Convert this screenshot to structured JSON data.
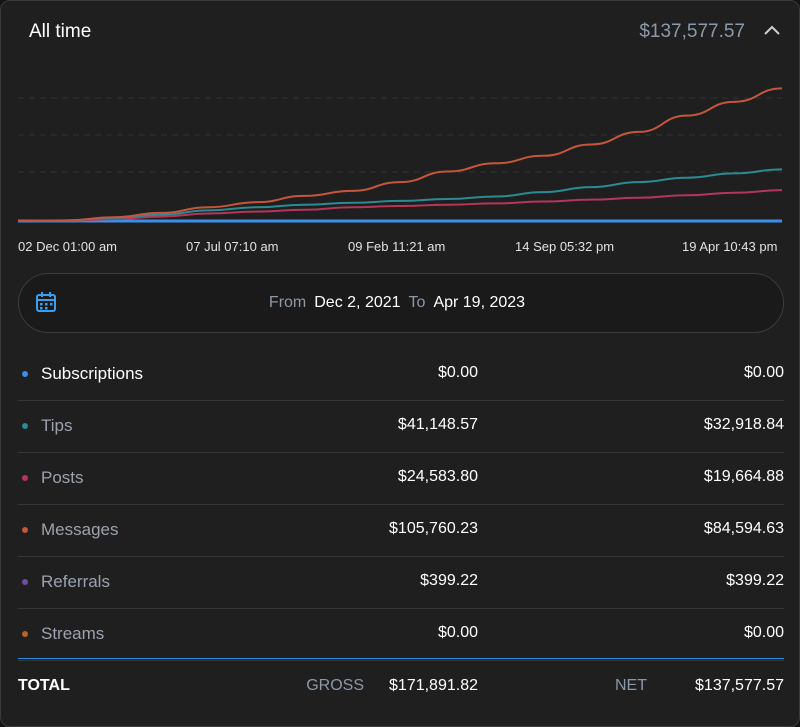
{
  "header": {
    "title": "All time",
    "total": "$137,577.57"
  },
  "chart_data": {
    "type": "line",
    "x_tick_labels": [
      "02 Dec 01:00 am",
      "07 Jul 07:10 am",
      "09 Feb 11:21 am",
      "14 Sep 05:32 pm",
      "19 Apr 10:43 pm"
    ],
    "ylim": [
      0,
      110000
    ],
    "grid": "dashed-horizontal",
    "series": [
      {
        "name": "Subscriptions",
        "color": "#3b8fe8",
        "values": [
          0,
          0,
          0,
          0,
          0,
          0,
          0,
          0,
          0,
          0,
          0,
          0,
          0,
          0,
          0,
          0,
          0
        ]
      },
      {
        "name": "Posts",
        "color": "#b5355b",
        "values": [
          0,
          300,
          1500,
          3500,
          6000,
          7500,
          9000,
          11000,
          12000,
          13000,
          14000,
          15500,
          17000,
          18500,
          20500,
          22500,
          24584
        ]
      },
      {
        "name": "Tips",
        "color": "#2c8a93",
        "values": [
          0,
          400,
          2500,
          5000,
          8500,
          11000,
          13000,
          14500,
          16000,
          17500,
          19500,
          23000,
          27000,
          31000,
          34500,
          38000,
          41149
        ]
      },
      {
        "name": "Messages",
        "color": "#c5563d",
        "values": [
          0,
          500,
          3000,
          6500,
          11000,
          15000,
          20000,
          24000,
          31000,
          39500,
          46000,
          52000,
          61000,
          71000,
          84000,
          95000,
          105760
        ]
      }
    ]
  },
  "date_range": {
    "from_label": "From",
    "from": "Dec 2, 2021",
    "to_label": "To",
    "to": "Apr 19, 2023"
  },
  "rows": [
    {
      "label": "Subscriptions",
      "color": "#3b8fe8",
      "gross": "$0.00",
      "net": "$0.00",
      "active": true
    },
    {
      "label": "Tips",
      "color": "#2c8a93",
      "gross": "$41,148.57",
      "net": "$32,918.84",
      "active": false
    },
    {
      "label": "Posts",
      "color": "#b5355b",
      "gross": "$24,583.80",
      "net": "$19,664.88",
      "active": false
    },
    {
      "label": "Messages",
      "color": "#c5563d",
      "gross": "$105,760.23",
      "net": "$84,594.63",
      "active": false
    },
    {
      "label": "Referrals",
      "color": "#6a4fa6",
      "gross": "$399.22",
      "net": "$399.22",
      "active": false
    },
    {
      "label": "Streams",
      "color": "#b5652b",
      "gross": "$0.00",
      "net": "$0.00",
      "active": false
    }
  ],
  "total": {
    "label": "TOTAL",
    "gross_label": "GROSS",
    "gross": "$171,891.82",
    "net_label": "NET",
    "net": "$137,577.57"
  },
  "icons": {
    "collapse": "chevron-up-icon",
    "calendar": "calendar-icon"
  }
}
